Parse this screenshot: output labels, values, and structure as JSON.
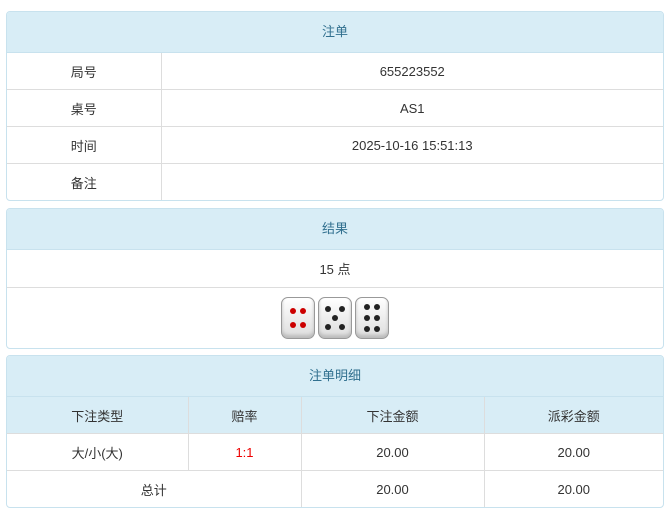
{
  "order": {
    "title": "注单",
    "rows": [
      {
        "label": "局号",
        "value": "655223552"
      },
      {
        "label": "桌号",
        "value": "AS1"
      },
      {
        "label": "时间",
        "value": "2025-10-16 15:51:13"
      },
      {
        "label": "备注",
        "value": ""
      }
    ]
  },
  "result": {
    "title": "结果",
    "points": "15 点",
    "dice": [
      4,
      5,
      6
    ]
  },
  "detail": {
    "title": "注单明细",
    "headers": [
      "下注类型",
      "赔率",
      "下注金额",
      "派彩金额"
    ],
    "row": {
      "type": "大/小(大)",
      "odds": "1:1",
      "bet": "20.00",
      "payout": "20.00"
    },
    "total": {
      "label": "总计",
      "bet": "20.00",
      "payout": "20.00"
    },
    "odds_color": "#e00000"
  }
}
